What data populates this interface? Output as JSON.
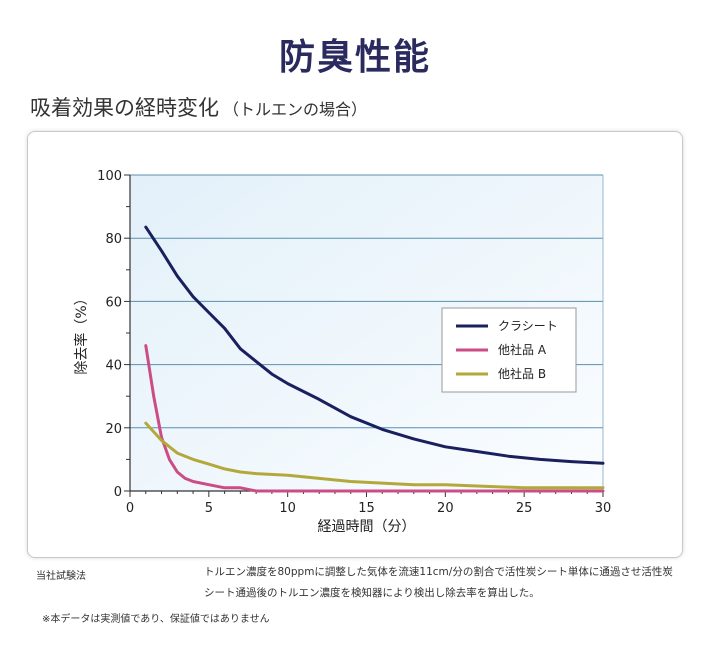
{
  "page": {
    "title": "防臭性能",
    "subtitle": "吸着効果の経時変化",
    "subtitle_paren": "（トルエンの場合）",
    "method_label": "当社試験法",
    "method_text": "トルエン濃度を80ppmに調整した気体を流速11cm/分の割合で活性炭シート単体に通過させ活性炭シート通過後のトルエン濃度を検知器により検出し除去率を算出した。",
    "disclaimer": "※本データは実測値であり、保証値ではありません"
  },
  "chart_data": {
    "type": "line",
    "xlabel": "経過時間（分）",
    "ylabel": "除去率（%）",
    "xlim": [
      0,
      30
    ],
    "ylim": [
      0,
      100
    ],
    "xticks": [
      0,
      5,
      10,
      15,
      20,
      25,
      30
    ],
    "yticks": [
      0,
      20,
      40,
      60,
      80,
      100
    ],
    "grid": "horizontal",
    "legend_position": "right",
    "series": [
      {
        "name": "クラシート",
        "color": "#1a1f5e",
        "points": [
          [
            1,
            83.5
          ],
          [
            2,
            76
          ],
          [
            3,
            68
          ],
          [
            4,
            61.5
          ],
          [
            5,
            56.5
          ],
          [
            6,
            51.5
          ],
          [
            7,
            45
          ],
          [
            8,
            41
          ],
          [
            9,
            37
          ],
          [
            10,
            34
          ],
          [
            12,
            29
          ],
          [
            14,
            23.5
          ],
          [
            16,
            19.5
          ],
          [
            18,
            16.5
          ],
          [
            20,
            14
          ],
          [
            22,
            12.5
          ],
          [
            24,
            11
          ],
          [
            26,
            10
          ],
          [
            28,
            9.3
          ],
          [
            30,
            8.8
          ]
        ]
      },
      {
        "name": "他社品 A",
        "color": "#cc4d86",
        "points": [
          [
            1,
            46
          ],
          [
            1.5,
            30
          ],
          [
            2,
            17
          ],
          [
            2.5,
            10
          ],
          [
            3,
            6
          ],
          [
            3.5,
            4
          ],
          [
            4,
            3
          ],
          [
            5,
            2
          ],
          [
            6,
            1
          ],
          [
            7,
            1
          ],
          [
            8,
            0
          ],
          [
            10,
            0
          ],
          [
            15,
            0
          ],
          [
            20,
            0
          ],
          [
            25,
            0
          ],
          [
            30,
            0
          ]
        ]
      },
      {
        "name": "他社品 B",
        "color": "#b3a93a",
        "points": [
          [
            1,
            21.5
          ],
          [
            2,
            16
          ],
          [
            3,
            12
          ],
          [
            4,
            10
          ],
          [
            5,
            8.5
          ],
          [
            6,
            7
          ],
          [
            7,
            6
          ],
          [
            8,
            5.5
          ],
          [
            10,
            5
          ],
          [
            12,
            4
          ],
          [
            14,
            3
          ],
          [
            16,
            2.5
          ],
          [
            18,
            2
          ],
          [
            20,
            2
          ],
          [
            25,
            1
          ],
          [
            30,
            1
          ]
        ]
      }
    ]
  }
}
